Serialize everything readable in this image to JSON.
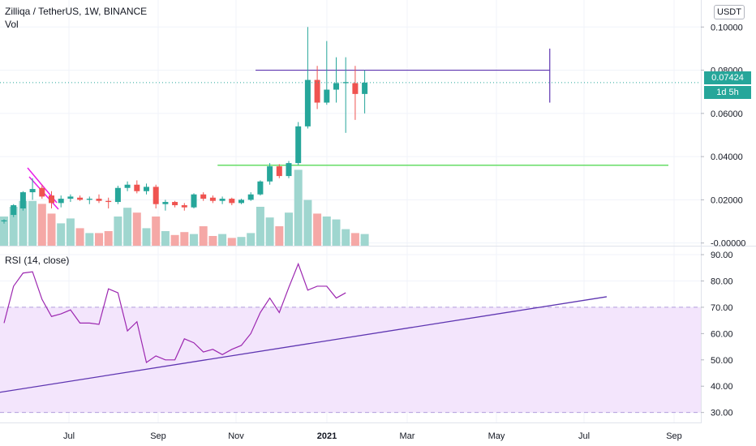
{
  "header": {
    "title": "Zilliqa / TetherUS, 1W, BINANCE",
    "volume_label": "Vol",
    "rsi_label": "RSI (14, close)",
    "currency": "USDT",
    "last_price": "0.07424",
    "countdown": "1d 5h"
  },
  "colors": {
    "up": "#26a69a",
    "down": "#ef5350",
    "rsi_line": "#9c27b0",
    "rsi_band": "#f3e5fc",
    "trend_line": "#5e35b1",
    "support_line": "#66dd66",
    "pattern_line": "#e91ee8"
  },
  "chart_data": [
    {
      "type": "candlestick",
      "price_ticks": [
        "0.10000",
        "0.08000",
        "0.06000",
        "0.04000",
        "0.02000",
        "-0.00000"
      ],
      "ylim": [
        -0.00125,
        0.1125
      ],
      "time_labels": [
        "Jul",
        "Sep",
        "Nov",
        "2021",
        "Mar",
        "May",
        "Jul",
        "Sep"
      ],
      "candles": [
        {
          "o": 0.01,
          "h": 0.011,
          "l": 0.009,
          "c": 0.0105
        },
        {
          "o": 0.013,
          "h": 0.018,
          "l": 0.012,
          "c": 0.0175
        },
        {
          "o": 0.016,
          "h": 0.024,
          "l": 0.015,
          "c": 0.0235
        },
        {
          "o": 0.0235,
          "h": 0.03,
          "l": 0.02,
          "c": 0.025
        },
        {
          "o": 0.0255,
          "h": 0.027,
          "l": 0.0205,
          "c": 0.0215
        },
        {
          "o": 0.022,
          "h": 0.024,
          "l": 0.016,
          "c": 0.0185
        },
        {
          "o": 0.0185,
          "h": 0.022,
          "l": 0.0165,
          "c": 0.0205
        },
        {
          "o": 0.0205,
          "h": 0.0225,
          "l": 0.019,
          "c": 0.0215
        },
        {
          "o": 0.021,
          "h": 0.022,
          "l": 0.0195,
          "c": 0.02
        },
        {
          "o": 0.02,
          "h": 0.0215,
          "l": 0.018,
          "c": 0.0205
        },
        {
          "o": 0.0205,
          "h": 0.0225,
          "l": 0.0185,
          "c": 0.0195
        },
        {
          "o": 0.0195,
          "h": 0.021,
          "l": 0.016,
          "c": 0.019
        },
        {
          "o": 0.019,
          "h": 0.0265,
          "l": 0.018,
          "c": 0.0255
        },
        {
          "o": 0.0255,
          "h": 0.0285,
          "l": 0.024,
          "c": 0.027
        },
        {
          "o": 0.027,
          "h": 0.029,
          "l": 0.023,
          "c": 0.024
        },
        {
          "o": 0.024,
          "h": 0.0275,
          "l": 0.0225,
          "c": 0.026
        },
        {
          "o": 0.026,
          "h": 0.027,
          "l": 0.016,
          "c": 0.018
        },
        {
          "o": 0.018,
          "h": 0.02,
          "l": 0.015,
          "c": 0.019
        },
        {
          "o": 0.019,
          "h": 0.0195,
          "l": 0.0165,
          "c": 0.0175
        },
        {
          "o": 0.0175,
          "h": 0.0185,
          "l": 0.015,
          "c": 0.0165
        },
        {
          "o": 0.0165,
          "h": 0.023,
          "l": 0.016,
          "c": 0.0225
        },
        {
          "o": 0.0225,
          "h": 0.0235,
          "l": 0.0195,
          "c": 0.0205
        },
        {
          "o": 0.021,
          "h": 0.022,
          "l": 0.0185,
          "c": 0.0195
        },
        {
          "o": 0.0195,
          "h": 0.0215,
          "l": 0.018,
          "c": 0.0205
        },
        {
          "o": 0.0205,
          "h": 0.021,
          "l": 0.0175,
          "c": 0.0185
        },
        {
          "o": 0.0185,
          "h": 0.0205,
          "l": 0.018,
          "c": 0.02
        },
        {
          "o": 0.02,
          "h": 0.0235,
          "l": 0.0195,
          "c": 0.0225
        },
        {
          "o": 0.0225,
          "h": 0.029,
          "l": 0.022,
          "c": 0.0285
        },
        {
          "o": 0.0285,
          "h": 0.037,
          "l": 0.027,
          "c": 0.0355
        },
        {
          "o": 0.0355,
          "h": 0.0365,
          "l": 0.03,
          "c": 0.031
        },
        {
          "o": 0.031,
          "h": 0.038,
          "l": 0.03,
          "c": 0.037
        },
        {
          "o": 0.037,
          "h": 0.056,
          "l": 0.036,
          "c": 0.054
        },
        {
          "o": 0.054,
          "h": 0.1,
          "l": 0.053,
          "c": 0.0755
        },
        {
          "o": 0.0755,
          "h": 0.082,
          "l": 0.062,
          "c": 0.065
        },
        {
          "o": 0.065,
          "h": 0.0935,
          "l": 0.064,
          "c": 0.071
        },
        {
          "o": 0.071,
          "h": 0.086,
          "l": 0.065,
          "c": 0.074
        },
        {
          "o": 0.074,
          "h": 0.086,
          "l": 0.051,
          "c": 0.0745
        },
        {
          "o": 0.074,
          "h": 0.082,
          "l": 0.057,
          "c": 0.069
        },
        {
          "o": 0.069,
          "h": 0.08,
          "l": 0.06,
          "c": 0.07424
        }
      ],
      "volume": [
        0.3,
        0.4,
        0.46,
        0.46,
        0.43,
        0.33,
        0.23,
        0.28,
        0.18,
        0.13,
        0.13,
        0.15,
        0.3,
        0.39,
        0.34,
        0.18,
        0.3,
        0.15,
        0.11,
        0.14,
        0.12,
        0.2,
        0.1,
        0.12,
        0.08,
        0.09,
        0.13,
        0.4,
        0.29,
        0.2,
        0.34,
        0.78,
        0.47,
        0.33,
        0.3,
        0.27,
        0.17,
        0.13,
        0.12
      ],
      "annotations": {
        "resistance": {
          "from_index": 26.5,
          "to_index": 57.5,
          "price": 0.08
        },
        "support": {
          "from_index": 22.5,
          "to_index": 70.0,
          "price": 0.036
        },
        "marker": {
          "index": 57.5,
          "low": 0.065,
          "high": 0.09
        }
      }
    },
    {
      "type": "line",
      "name": "RSI (14, close)",
      "y_ticks": [
        "90.00",
        "80.00",
        "70.00",
        "60.00",
        "50.00",
        "40.00",
        "30.00"
      ],
      "ylim": [
        26.2,
        93.4
      ],
      "band": [
        30,
        70
      ],
      "values": [
        64,
        78,
        83,
        83.5,
        73,
        66.5,
        67.5,
        69,
        64,
        64,
        63.5,
        77,
        75.5,
        61,
        64.5,
        49,
        51.5,
        50,
        50,
        58,
        56.5,
        53,
        54,
        52,
        54,
        55.5,
        60,
        68,
        73.5,
        68,
        77.5,
        86.5,
        76.5,
        78,
        78,
        73.5,
        75.5
      ],
      "trendline": {
        "from_index": -2.5,
        "from_value": 36.5,
        "to_index": 63.5,
        "to_value": 74.0
      }
    }
  ]
}
